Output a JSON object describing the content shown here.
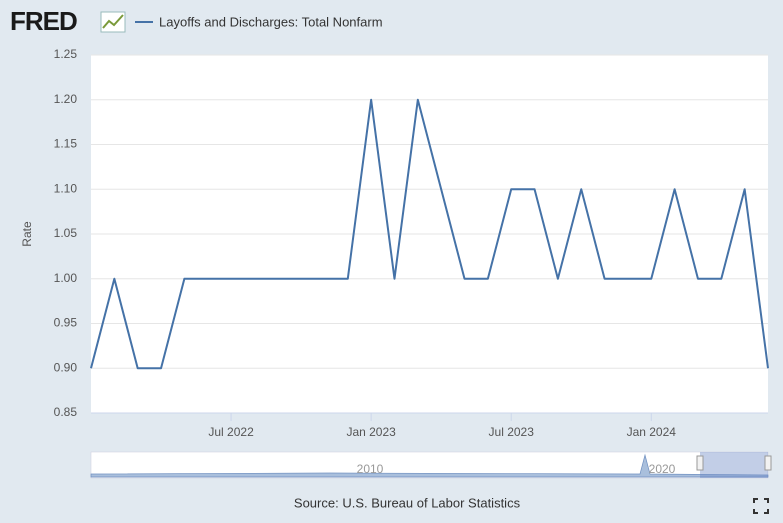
{
  "logo": "FRED",
  "source": "Source: U.S. Bureau of Labor Statistics",
  "navigator_labels": [
    "2010",
    "2020"
  ],
  "chart_data": {
    "type": "line",
    "y_label": "Rate",
    "series": [
      {
        "name": "Layoffs and Discharges: Total Nonfarm",
        "color": "#4572a7",
        "values": [
          0.9,
          1.0,
          0.9,
          0.9,
          1.0,
          1.0,
          1.0,
          1.0,
          1.0,
          1.0,
          1.0,
          1.0,
          1.2,
          1.0,
          1.2,
          1.1,
          1.0,
          1.0,
          1.1,
          1.1,
          1.0,
          1.1,
          1.0,
          1.0,
          1.0,
          1.1,
          1.0,
          1.0,
          1.1,
          0.9
        ]
      }
    ],
    "x": [
      "2022-01",
      "2022-02",
      "2022-03",
      "2022-04",
      "2022-05",
      "2022-06",
      "2022-07",
      "2022-08",
      "2022-09",
      "2022-10",
      "2022-11",
      "2022-12",
      "2023-01",
      "2023-02",
      "2023-03",
      "2023-04",
      "2023-05",
      "2023-06",
      "2023-07",
      "2023-08",
      "2023-09",
      "2023-10",
      "2023-11",
      "2023-12",
      "2024-01",
      "2024-02",
      "2024-03",
      "2024-04",
      "2024-05",
      "2024-06"
    ],
    "xlim": [
      "2022-01",
      "2024-06"
    ],
    "xticks": [
      {
        "value": "2022-07",
        "label": "Jul 2022"
      },
      {
        "value": "2023-01",
        "label": "Jan 2023"
      },
      {
        "value": "2023-07",
        "label": "Jul 2023"
      },
      {
        "value": "2024-01",
        "label": "Jan 2024"
      }
    ],
    "ylim": [
      0.85,
      1.25
    ],
    "yticks": [
      0.85,
      {
        "value": 0.9,
        "label": "0.90"
      },
      0.95,
      {
        "value": 1.0,
        "label": "1.00"
      },
      1.05,
      {
        "value": 1.1,
        "label": "1.10"
      },
      1.15,
      {
        "value": 1.2,
        "label": "1.20"
      },
      1.25
    ],
    "grid": true
  }
}
